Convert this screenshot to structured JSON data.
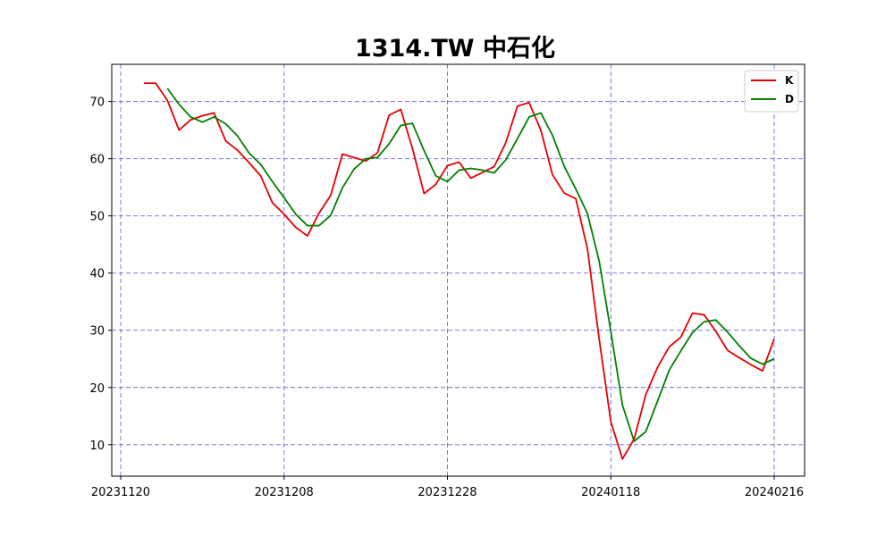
{
  "chart_data": {
    "type": "line",
    "title": "1314.TW 中石化",
    "xlabel": "",
    "ylabel": "",
    "x_ticks": [
      "20231120",
      "20231208",
      "20231228",
      "20240118",
      "20240216"
    ],
    "y_ticks": [
      10,
      20,
      30,
      40,
      50,
      60,
      70
    ],
    "ylim": [
      4.5,
      76.5
    ],
    "grid": true,
    "legend_position": "top-right",
    "series": [
      {
        "name": "K",
        "color": "#e60000",
        "start_index": 2,
        "values": [
          73.2,
          73.2,
          70.2,
          65.0,
          66.8,
          67.5,
          68.0,
          63.1,
          61.5,
          59.3,
          57.0,
          52.3,
          50.3,
          48.0,
          46.5,
          50.5,
          53.6,
          60.8,
          60.2,
          59.6,
          61.0,
          67.6,
          68.6,
          61.8,
          53.9,
          55.5,
          58.8,
          59.4,
          56.6,
          57.6,
          58.6,
          62.8,
          69.2,
          69.8,
          65.0,
          57.2,
          54.0,
          53.0,
          44.2,
          28.5,
          14.0,
          7.5,
          11.0,
          18.8,
          23.5,
          27.1,
          28.8,
          33.0,
          32.7,
          29.8,
          26.5,
          25.2,
          24.0,
          22.9,
          28.5
        ]
      },
      {
        "name": "D",
        "color": "#008000",
        "start_index": 4,
        "values": [
          72.3,
          69.5,
          67.3,
          66.4,
          67.3,
          66.1,
          64.0,
          61.0,
          59.0,
          56.0,
          53.2,
          50.3,
          48.3,
          48.3,
          50.1,
          54.9,
          58.2,
          60.0,
          60.2,
          62.6,
          65.8,
          66.2,
          61.4,
          57.0,
          56.0,
          58.0,
          58.3,
          58.0,
          57.5,
          59.8,
          63.5,
          67.3,
          68.0,
          64.1,
          58.7,
          54.7,
          50.4,
          42.1,
          29.8,
          16.9,
          10.6,
          12.3,
          17.6,
          23.0,
          26.4,
          29.6,
          31.5,
          31.8,
          29.7,
          27.3,
          25.1,
          24.1,
          25.0
        ]
      }
    ],
    "x_range_index": [
      0,
      57
    ]
  }
}
